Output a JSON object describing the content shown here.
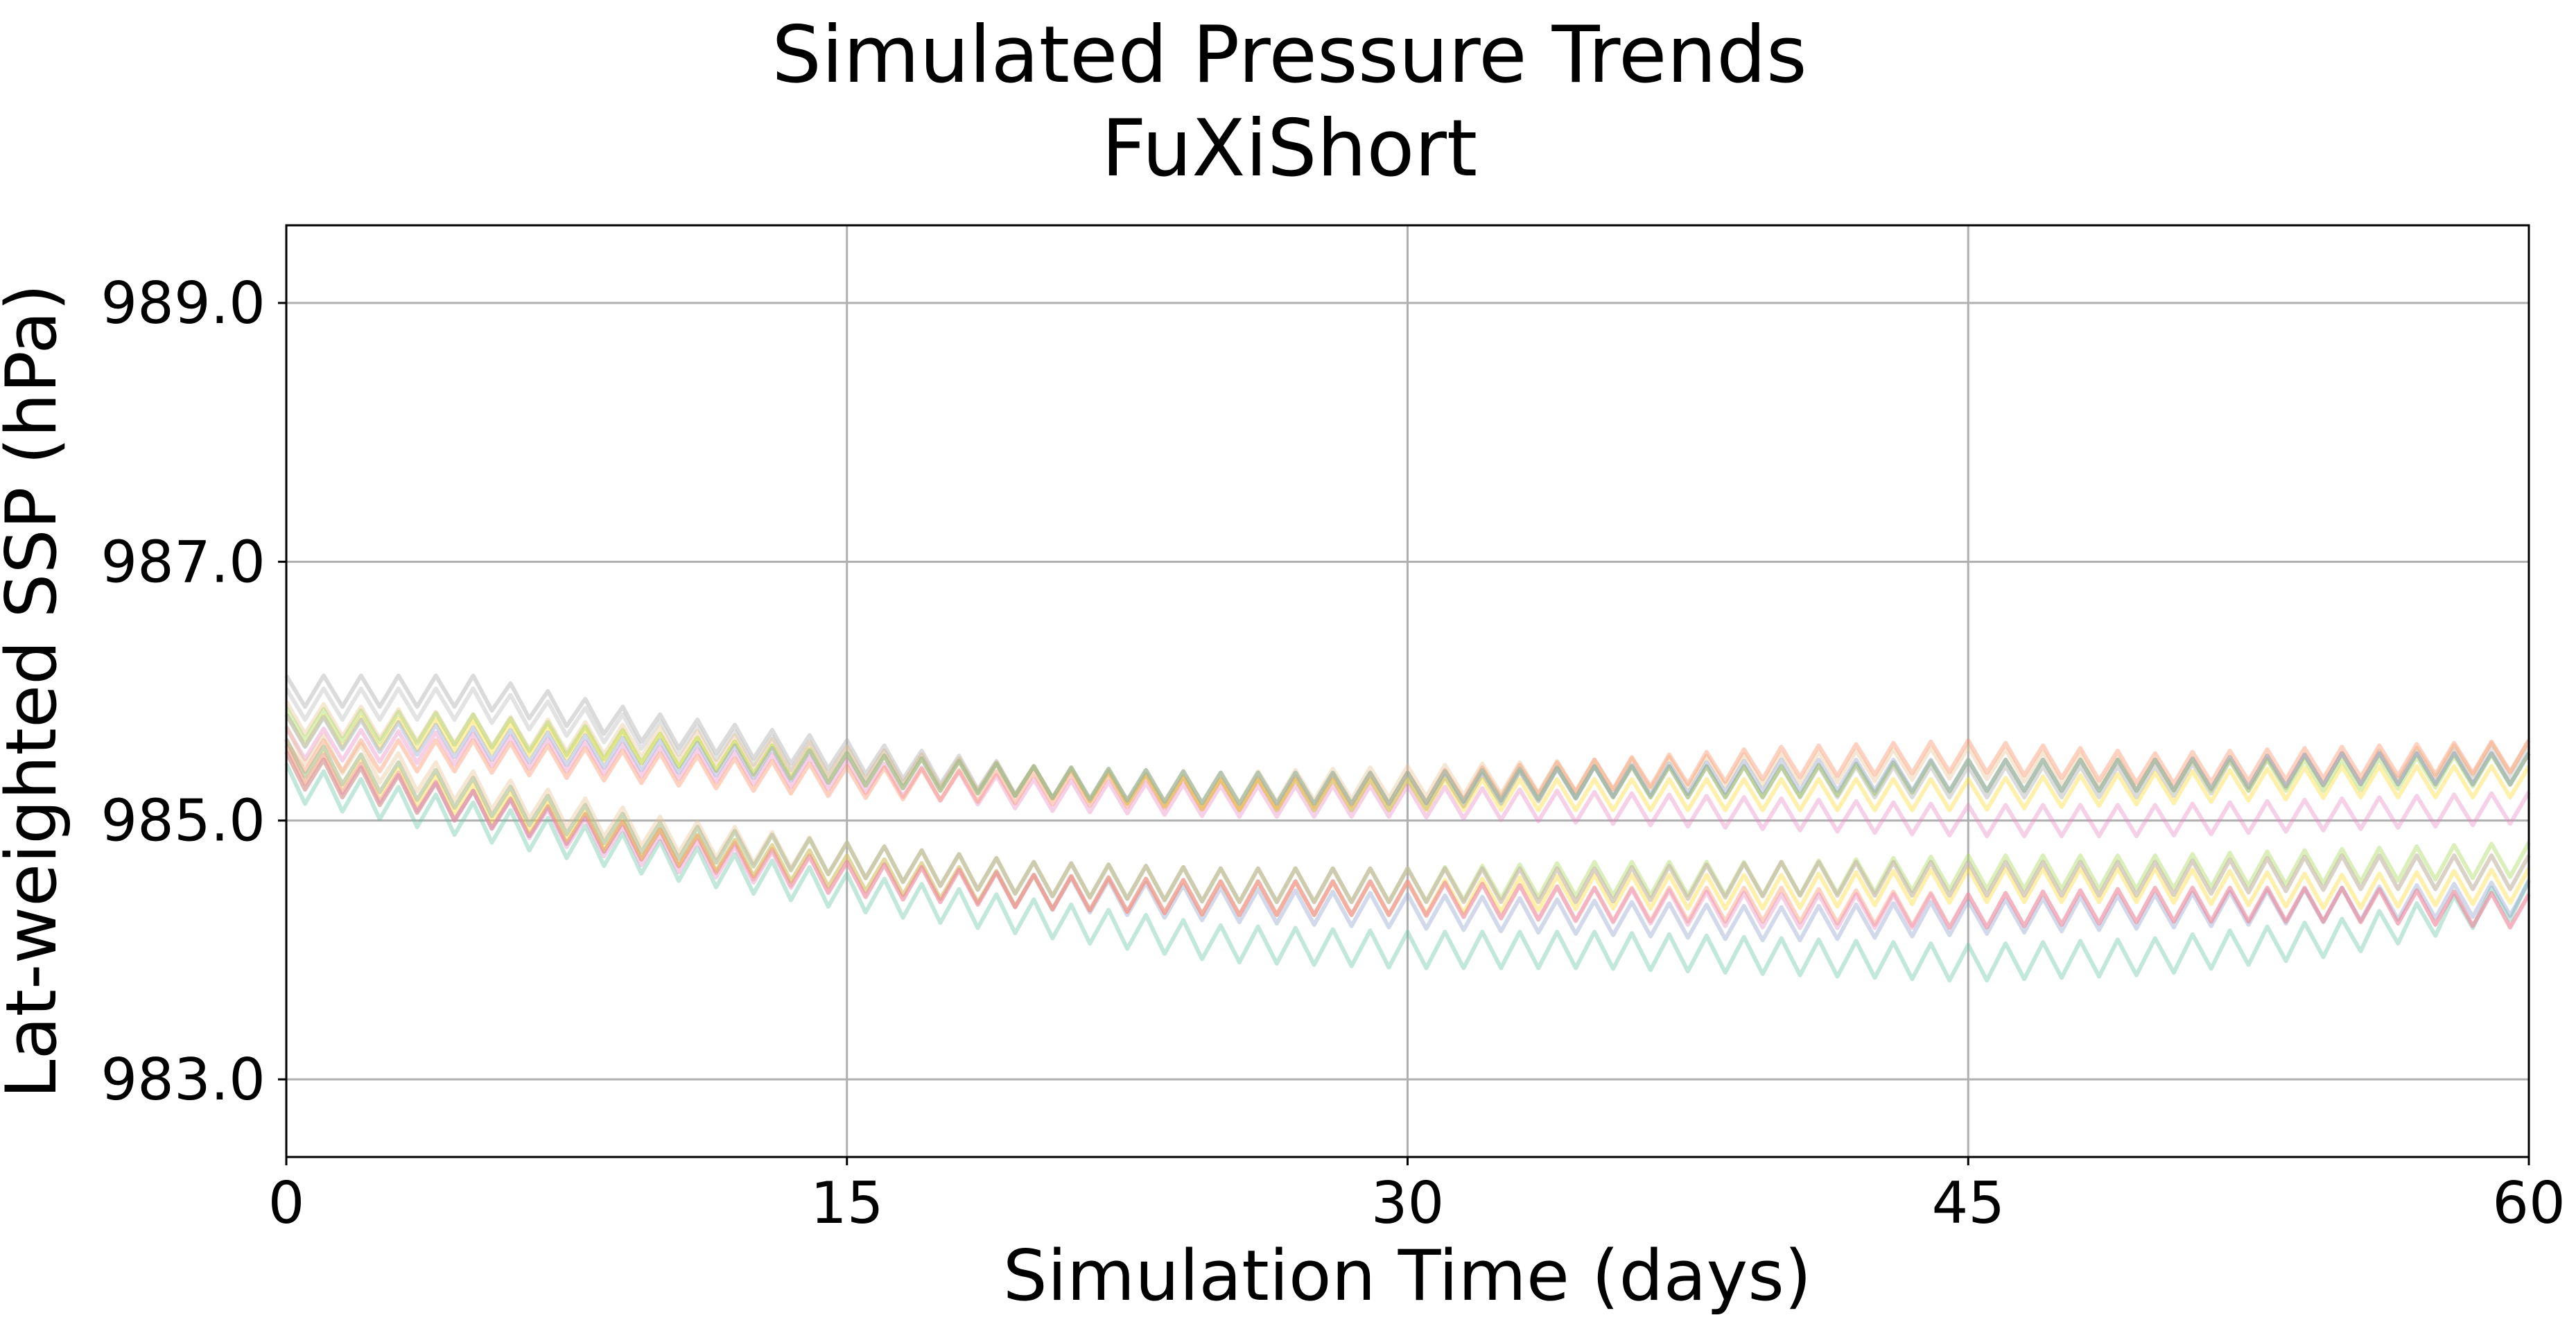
{
  "chart_data": {
    "type": "line",
    "title": "Simulated Pressure Trends",
    "subtitle": "FuXiShort",
    "xlabel": "Simulation Time (days)",
    "ylabel": "Lat-weighted SSP (hPa)",
    "xlim": [
      0,
      60
    ],
    "ylim": [
      982.4,
      989.6
    ],
    "xticks": [
      0,
      15,
      30,
      45,
      60
    ],
    "xtick_labels": [
      "0",
      "15",
      "30",
      "45",
      "60"
    ],
    "yticks": [
      983.0,
      985.0,
      987.0,
      989.0
    ],
    "ytick_labels": [
      "983.0",
      "985.0",
      "987.0",
      "989.0"
    ],
    "grid": true,
    "legend": "none",
    "oscillation_period_days": 1.0,
    "series": [
      {
        "color": "#a6a6a6",
        "values": [
          [
            0,
            986.0
          ],
          [
            5,
            986.0
          ],
          [
            10,
            985.7
          ],
          [
            15,
            985.5
          ],
          [
            20,
            985.3
          ],
          [
            25,
            985.2
          ],
          [
            30,
            985.2
          ],
          [
            35,
            985.3
          ],
          [
            40,
            985.3
          ],
          [
            45,
            985.3
          ],
          [
            50,
            985.3
          ],
          [
            55,
            985.4
          ],
          [
            60,
            985.4
          ]
        ],
        "amplitude": 0.12
      },
      {
        "color": "#b8b8b8",
        "values": [
          [
            0,
            985.9
          ],
          [
            5,
            985.9
          ],
          [
            10,
            985.65
          ],
          [
            15,
            985.45
          ],
          [
            20,
            985.3
          ],
          [
            25,
            985.2
          ],
          [
            30,
            985.2
          ],
          [
            35,
            985.3
          ],
          [
            40,
            985.3
          ],
          [
            45,
            985.35
          ],
          [
            50,
            985.35
          ],
          [
            55,
            985.4
          ],
          [
            60,
            985.45
          ]
        ],
        "amplitude": 0.12
      },
      {
        "color": "#e5c494",
        "values": [
          [
            0,
            985.8
          ],
          [
            5,
            985.7
          ],
          [
            10,
            985.6
          ],
          [
            15,
            985.45
          ],
          [
            20,
            985.3
          ],
          [
            25,
            985.25
          ],
          [
            30,
            985.3
          ],
          [
            35,
            985.35
          ],
          [
            40,
            985.4
          ],
          [
            45,
            985.45
          ],
          [
            50,
            985.35
          ],
          [
            55,
            985.4
          ],
          [
            60,
            985.5
          ]
        ],
        "amplitude": 0.12
      },
      {
        "color": "#e78ac3",
        "values": [
          [
            0,
            985.6
          ],
          [
            5,
            985.55
          ],
          [
            10,
            985.45
          ],
          [
            15,
            985.35
          ],
          [
            20,
            985.2
          ],
          [
            25,
            985.15
          ],
          [
            30,
            985.15
          ],
          [
            35,
            985.1
          ],
          [
            40,
            985.05
          ],
          [
            45,
            985.0
          ],
          [
            50,
            985.0
          ],
          [
            55,
            985.05
          ],
          [
            60,
            985.1
          ]
        ],
        "amplitude": 0.12
      },
      {
        "color": "#fc8d62",
        "values": [
          [
            0,
            985.5
          ],
          [
            5,
            985.5
          ],
          [
            10,
            985.4
          ],
          [
            15,
            985.3
          ],
          [
            20,
            985.25
          ],
          [
            25,
            985.2
          ],
          [
            30,
            985.25
          ],
          [
            35,
            985.35
          ],
          [
            40,
            985.45
          ],
          [
            45,
            985.5
          ],
          [
            50,
            985.4
          ],
          [
            55,
            985.45
          ],
          [
            60,
            985.5
          ]
        ],
        "amplitude": 0.12
      },
      {
        "color": "#ffd92f",
        "values": [
          [
            0,
            985.7
          ],
          [
            5,
            985.65
          ],
          [
            10,
            985.55
          ],
          [
            15,
            985.4
          ],
          [
            20,
            985.3
          ],
          [
            25,
            985.2
          ],
          [
            30,
            985.2
          ],
          [
            35,
            985.2
          ],
          [
            40,
            985.2
          ],
          [
            45,
            985.2
          ],
          [
            50,
            985.25
          ],
          [
            55,
            985.3
          ],
          [
            60,
            985.3
          ]
        ],
        "amplitude": 0.12
      },
      {
        "color": "#a6d854",
        "values": [
          [
            0,
            985.75
          ],
          [
            5,
            985.7
          ],
          [
            10,
            985.55
          ],
          [
            15,
            985.4
          ],
          [
            20,
            985.3
          ],
          [
            25,
            985.25
          ],
          [
            30,
            985.25
          ],
          [
            35,
            985.3
          ],
          [
            40,
            985.3
          ],
          [
            45,
            985.35
          ],
          [
            50,
            985.35
          ],
          [
            55,
            985.35
          ],
          [
            60,
            985.4
          ]
        ],
        "amplitude": 0.12
      },
      {
        "color": "#8da0cb",
        "values": [
          [
            0,
            985.7
          ],
          [
            5,
            985.6
          ],
          [
            10,
            985.5
          ],
          [
            15,
            985.4
          ],
          [
            20,
            985.3
          ],
          [
            25,
            985.25
          ],
          [
            30,
            985.25
          ],
          [
            35,
            985.3
          ],
          [
            40,
            985.35
          ],
          [
            45,
            985.35
          ],
          [
            50,
            985.35
          ],
          [
            55,
            985.4
          ],
          [
            60,
            985.4
          ]
        ],
        "amplitude": 0.12
      },
      {
        "color": "#66c2a5",
        "values": [
          [
            0,
            985.3
          ],
          [
            5,
            985.0
          ],
          [
            10,
            984.7
          ],
          [
            15,
            984.45
          ],
          [
            20,
            984.25
          ],
          [
            25,
            984.05
          ],
          [
            30,
            984.0
          ],
          [
            35,
            984.0
          ],
          [
            40,
            983.95
          ],
          [
            45,
            983.9
          ],
          [
            50,
            983.95
          ],
          [
            55,
            984.1
          ],
          [
            60,
            984.4
          ]
        ],
        "amplitude": 0.14
      },
      {
        "color": "#8da0cb",
        "values": [
          [
            0,
            985.4
          ],
          [
            5,
            985.1
          ],
          [
            10,
            984.8
          ],
          [
            15,
            984.6
          ],
          [
            20,
            984.45
          ],
          [
            25,
            984.35
          ],
          [
            30,
            984.3
          ],
          [
            35,
            984.25
          ],
          [
            40,
            984.2
          ],
          [
            45,
            984.25
          ],
          [
            50,
            984.3
          ],
          [
            55,
            984.35
          ],
          [
            60,
            984.4
          ]
        ],
        "amplitude": 0.13
      },
      {
        "color": "#a6d854",
        "values": [
          [
            0,
            985.5
          ],
          [
            5,
            985.2
          ],
          [
            10,
            984.85
          ],
          [
            15,
            984.7
          ],
          [
            20,
            984.55
          ],
          [
            25,
            984.5
          ],
          [
            30,
            984.5
          ],
          [
            35,
            984.55
          ],
          [
            40,
            984.55
          ],
          [
            45,
            984.6
          ],
          [
            50,
            984.6
          ],
          [
            55,
            984.65
          ],
          [
            60,
            984.7
          ]
        ],
        "amplitude": 0.13
      },
      {
        "color": "#ffd92f",
        "values": [
          [
            0,
            985.45
          ],
          [
            5,
            985.15
          ],
          [
            10,
            984.8
          ],
          [
            15,
            984.6
          ],
          [
            20,
            984.45
          ],
          [
            25,
            984.4
          ],
          [
            30,
            984.4
          ],
          [
            35,
            984.45
          ],
          [
            40,
            984.45
          ],
          [
            45,
            984.5
          ],
          [
            50,
            984.5
          ],
          [
            55,
            984.45
          ],
          [
            60,
            984.5
          ]
        ],
        "amplitude": 0.13
      },
      {
        "color": "#e5c494",
        "values": [
          [
            0,
            985.6
          ],
          [
            5,
            985.25
          ],
          [
            10,
            984.9
          ],
          [
            15,
            984.7
          ],
          [
            20,
            984.55
          ],
          [
            25,
            984.5
          ],
          [
            30,
            984.5
          ],
          [
            35,
            984.5
          ],
          [
            40,
            984.55
          ],
          [
            45,
            984.55
          ],
          [
            50,
            984.55
          ],
          [
            55,
            984.6
          ],
          [
            60,
            984.6
          ]
        ],
        "amplitude": 0.13
      },
      {
        "color": "#b3b3b3",
        "values": [
          [
            0,
            985.5
          ],
          [
            5,
            985.2
          ],
          [
            10,
            984.85
          ],
          [
            15,
            984.7
          ],
          [
            20,
            984.55
          ],
          [
            25,
            984.5
          ],
          [
            30,
            984.5
          ],
          [
            35,
            984.5
          ],
          [
            40,
            984.55
          ],
          [
            45,
            984.55
          ],
          [
            50,
            984.55
          ],
          [
            55,
            984.6
          ],
          [
            60,
            984.6
          ]
        ],
        "amplitude": 0.13
      },
      {
        "color": "#fc8d62",
        "values": [
          [
            0,
            985.4
          ],
          [
            5,
            985.1
          ],
          [
            10,
            984.8
          ],
          [
            15,
            984.55
          ],
          [
            20,
            984.45
          ],
          [
            25,
            984.4
          ],
          [
            30,
            984.4
          ],
          [
            35,
            984.35
          ],
          [
            40,
            984.35
          ],
          [
            45,
            984.3
          ],
          [
            50,
            984.35
          ],
          [
            55,
            984.35
          ],
          [
            60,
            984.3
          ]
        ],
        "amplitude": 0.13
      },
      {
        "color": "#e78ac3",
        "values": [
          [
            0,
            985.45
          ],
          [
            5,
            985.1
          ],
          [
            10,
            984.75
          ],
          [
            15,
            984.55
          ],
          [
            20,
            984.45
          ],
          [
            25,
            984.4
          ],
          [
            30,
            984.4
          ],
          [
            35,
            984.35
          ],
          [
            40,
            984.3
          ],
          [
            45,
            984.3
          ],
          [
            50,
            984.35
          ],
          [
            55,
            984.35
          ],
          [
            60,
            984.3
          ]
        ],
        "amplitude": 0.13
      }
    ]
  }
}
